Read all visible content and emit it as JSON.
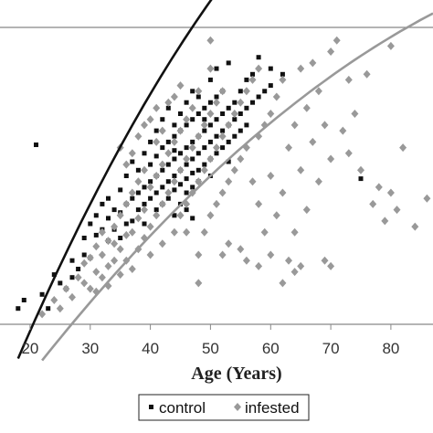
{
  "chart_data": {
    "type": "scatter",
    "xlabel": "Age (Years)",
    "ylabel": "",
    "xlim": [
      15,
      87
    ],
    "ylim": [
      0,
      1
    ],
    "x_ticks": [
      "20",
      "30",
      "40",
      "50",
      "60",
      "70",
      "80"
    ],
    "grid": false,
    "legend_position": "bottom",
    "series": [
      {
        "name": "control",
        "color": "#111111",
        "marker": "square",
        "points": [
          [
            18,
            0.03
          ],
          [
            21,
            0.61
          ],
          [
            23,
            0.03
          ],
          [
            25,
            0.12
          ],
          [
            26,
            0.1
          ],
          [
            27,
            0.14
          ],
          [
            27,
            0.2
          ],
          [
            28,
            0.17
          ],
          [
            29,
            0.22
          ],
          [
            29,
            0.28
          ],
          [
            30,
            0.21
          ],
          [
            30,
            0.33
          ],
          [
            31,
            0.29
          ],
          [
            31,
            0.36
          ],
          [
            32,
            0.31
          ],
          [
            32,
            0.4
          ],
          [
            33,
            0.35
          ],
          [
            33,
            0.42
          ],
          [
            34,
            0.38
          ],
          [
            34,
            0.31
          ],
          [
            35,
            0.37
          ],
          [
            35,
            0.45
          ],
          [
            35,
            0.28
          ],
          [
            36,
            0.4
          ],
          [
            36,
            0.5
          ],
          [
            37,
            0.42
          ],
          [
            37,
            0.34
          ],
          [
            37,
            0.55
          ],
          [
            38,
            0.44
          ],
          [
            38,
            0.38
          ],
          [
            38,
            0.52
          ],
          [
            39,
            0.46
          ],
          [
            39,
            0.4
          ],
          [
            39,
            0.58
          ],
          [
            39,
            0.33
          ],
          [
            40,
            0.48
          ],
          [
            40,
            0.42
          ],
          [
            40,
            0.54
          ],
          [
            40,
            0.62
          ],
          [
            41,
            0.5
          ],
          [
            41,
            0.44
          ],
          [
            41,
            0.57
          ],
          [
            41,
            0.38
          ],
          [
            41,
            0.66
          ],
          [
            42,
            0.52
          ],
          [
            42,
            0.46
          ],
          [
            42,
            0.6
          ],
          [
            42,
            0.4
          ],
          [
            42,
            0.7
          ],
          [
            43,
            0.54
          ],
          [
            43,
            0.48
          ],
          [
            43,
            0.62
          ],
          [
            43,
            0.42
          ],
          [
            43,
            0.74
          ],
          [
            44,
            0.56
          ],
          [
            44,
            0.5
          ],
          [
            44,
            0.64
          ],
          [
            44,
            0.45
          ],
          [
            44,
            0.68
          ],
          [
            44,
            0.36
          ],
          [
            45,
            0.58
          ],
          [
            45,
            0.52
          ],
          [
            45,
            0.66
          ],
          [
            45,
            0.47
          ],
          [
            45,
            0.72
          ],
          [
            45,
            0.4
          ],
          [
            46,
            0.6
          ],
          [
            46,
            0.54
          ],
          [
            46,
            0.68
          ],
          [
            46,
            0.49
          ],
          [
            46,
            0.76
          ],
          [
            46,
            0.44
          ],
          [
            47,
            0.62
          ],
          [
            47,
            0.56
          ],
          [
            47,
            0.7
          ],
          [
            47,
            0.51
          ],
          [
            47,
            0.8
          ],
          [
            47,
            0.46
          ],
          [
            48,
            0.64
          ],
          [
            48,
            0.58
          ],
          [
            48,
            0.72
          ],
          [
            48,
            0.52
          ],
          [
            48,
            0.78
          ],
          [
            48,
            0.48
          ],
          [
            49,
            0.6
          ],
          [
            49,
            0.66
          ],
          [
            49,
            0.74
          ],
          [
            49,
            0.54
          ],
          [
            49,
            0.7
          ],
          [
            50,
            0.62
          ],
          [
            50,
            0.68
          ],
          [
            50,
            0.76
          ],
          [
            50,
            0.56
          ],
          [
            50,
            0.84
          ],
          [
            50,
            0.5
          ],
          [
            51,
            0.64
          ],
          [
            51,
            0.7
          ],
          [
            51,
            0.58
          ],
          [
            51,
            0.78
          ],
          [
            51,
            0.88
          ],
          [
            52,
            0.66
          ],
          [
            52,
            0.72
          ],
          [
            52,
            0.6
          ],
          [
            52,
            0.8
          ],
          [
            53,
            0.68
          ],
          [
            53,
            0.74
          ],
          [
            53,
            0.62
          ],
          [
            53,
            0.9
          ],
          [
            54,
            0.7
          ],
          [
            54,
            0.76
          ],
          [
            54,
            0.64
          ],
          [
            55,
            0.72
          ],
          [
            55,
            0.8
          ],
          [
            55,
            0.66
          ],
          [
            56,
            0.74
          ],
          [
            56,
            0.84
          ],
          [
            56,
            0.68
          ],
          [
            57,
            0.76
          ],
          [
            57,
            0.86
          ],
          [
            58,
            0.78
          ],
          [
            58,
            0.92
          ],
          [
            59,
            0.8
          ],
          [
            60,
            0.82
          ],
          [
            60,
            0.88
          ],
          [
            62,
            0.86
          ],
          [
            75,
            0.49
          ],
          [
            19,
            0.06
          ],
          [
            22,
            0.08
          ],
          [
            24,
            0.15
          ],
          [
            33,
            0.27
          ],
          [
            36,
            0.33
          ],
          [
            44,
            0.59
          ],
          [
            47,
            0.35
          ],
          [
            53,
            0.55
          ],
          [
            46,
            0.38
          ]
        ]
      },
      {
        "name": "infested",
        "color": "#999999",
        "marker": "diamond",
        "points": [
          [
            22,
            0.01
          ],
          [
            24,
            0.06
          ],
          [
            25,
            0.03
          ],
          [
            26,
            0.1
          ],
          [
            27,
            0.07
          ],
          [
            28,
            0.14
          ],
          [
            29,
            0.12
          ],
          [
            29,
            0.19
          ],
          [
            30,
            0.1
          ],
          [
            30,
            0.21
          ],
          [
            31,
            0.16
          ],
          [
            31,
            0.25
          ],
          [
            31,
            0.09
          ],
          [
            32,
            0.14
          ],
          [
            32,
            0.22
          ],
          [
            32,
            0.3
          ],
          [
            33,
            0.18
          ],
          [
            33,
            0.27
          ],
          [
            33,
            0.11
          ],
          [
            34,
            0.2
          ],
          [
            34,
            0.32
          ],
          [
            34,
            0.26
          ],
          [
            35,
            0.15
          ],
          [
            35,
            0.24
          ],
          [
            35,
            0.36
          ],
          [
            35,
            0.6
          ],
          [
            36,
            0.2
          ],
          [
            36,
            0.29
          ],
          [
            36,
            0.4
          ],
          [
            36,
            0.54
          ],
          [
            37,
            0.17
          ],
          [
            37,
            0.3
          ],
          [
            37,
            0.44
          ],
          [
            37,
            0.58
          ],
          [
            38,
            0.24
          ],
          [
            38,
            0.35
          ],
          [
            38,
            0.48
          ],
          [
            38,
            0.64
          ],
          [
            39,
            0.28
          ],
          [
            39,
            0.38
          ],
          [
            39,
            0.52
          ],
          [
            39,
            0.68
          ],
          [
            40,
            0.22
          ],
          [
            40,
            0.32
          ],
          [
            40,
            0.46
          ],
          [
            40,
            0.7
          ],
          [
            41,
            0.36
          ],
          [
            41,
            0.5
          ],
          [
            41,
            0.62
          ],
          [
            41,
            0.74
          ],
          [
            42,
            0.26
          ],
          [
            42,
            0.4
          ],
          [
            42,
            0.54
          ],
          [
            42,
            0.66
          ],
          [
            43,
            0.44
          ],
          [
            43,
            0.58
          ],
          [
            43,
            0.76
          ],
          [
            44,
            0.3
          ],
          [
            44,
            0.48
          ],
          [
            44,
            0.62
          ],
          [
            44,
            0.78
          ],
          [
            45,
            0.36
          ],
          [
            45,
            0.52
          ],
          [
            45,
            0.66
          ],
          [
            45,
            0.82
          ],
          [
            46,
            0.4
          ],
          [
            46,
            0.56
          ],
          [
            46,
            0.7
          ],
          [
            47,
            0.44
          ],
          [
            47,
            0.6
          ],
          [
            47,
            0.74
          ],
          [
            48,
            0.22
          ],
          [
            48,
            0.48
          ],
          [
            48,
            0.64
          ],
          [
            48,
            0.8
          ],
          [
            49,
            0.3
          ],
          [
            49,
            0.52
          ],
          [
            49,
            0.68
          ],
          [
            50,
            0.36
          ],
          [
            50,
            0.56
          ],
          [
            50,
            0.72
          ],
          [
            50,
            0.88
          ],
          [
            50,
            0.98
          ],
          [
            51,
            0.4
          ],
          [
            51,
            0.6
          ],
          [
            51,
            0.76
          ],
          [
            52,
            0.44
          ],
          [
            52,
            0.64
          ],
          [
            52,
            0.8
          ],
          [
            53,
            0.26
          ],
          [
            53,
            0.48
          ],
          [
            53,
            0.68
          ],
          [
            54,
            0.52
          ],
          [
            54,
            0.72
          ],
          [
            55,
            0.56
          ],
          [
            55,
            0.76
          ],
          [
            56,
            0.2
          ],
          [
            56,
            0.6
          ],
          [
            56,
            0.8
          ],
          [
            57,
            0.48
          ],
          [
            57,
            0.84
          ],
          [
            58,
            0.4
          ],
          [
            58,
            0.64
          ],
          [
            58,
            0.88
          ],
          [
            59,
            0.3
          ],
          [
            59,
            0.68
          ],
          [
            60,
            0.22
          ],
          [
            60,
            0.5
          ],
          [
            60,
            0.72
          ],
          [
            61,
            0.36
          ],
          [
            61,
            0.78
          ],
          [
            62,
            0.44
          ],
          [
            62,
            0.84
          ],
          [
            63,
            0.2
          ],
          [
            63,
            0.6
          ],
          [
            64,
            0.3
          ],
          [
            64,
            0.68
          ],
          [
            65,
            0.52
          ],
          [
            65,
            0.88
          ],
          [
            66,
            0.38
          ],
          [
            66,
            0.74
          ],
          [
            67,
            0.62
          ],
          [
            67,
            0.9
          ],
          [
            68,
            0.48
          ],
          [
            68,
            0.8
          ],
          [
            69,
            0.2
          ],
          [
            69,
            0.68
          ],
          [
            70,
            0.94
          ],
          [
            70,
            0.56
          ],
          [
            71,
            0.98
          ],
          [
            72,
            0.66
          ],
          [
            73,
            0.84
          ],
          [
            74,
            0.72
          ],
          [
            75,
            0.52
          ],
          [
            76,
            0.86
          ],
          [
            77,
            0.4
          ],
          [
            78,
            0.46
          ],
          [
            79,
            0.34
          ],
          [
            80,
            0.96
          ],
          [
            80,
            0.44
          ],
          [
            81,
            0.38
          ],
          [
            82,
            0.6
          ],
          [
            84,
            0.32
          ],
          [
            86,
            0.42
          ],
          [
            62,
            0.12
          ],
          [
            64,
            0.16
          ],
          [
            65,
            0.18
          ],
          [
            70,
            0.18
          ],
          [
            73,
            0.58
          ],
          [
            58,
            0.18
          ],
          [
            55,
            0.24
          ],
          [
            52,
            0.22
          ],
          [
            48,
            0.12
          ],
          [
            46,
            0.3
          ]
        ]
      }
    ],
    "trendlines": [
      {
        "series": "control",
        "color": "#111111",
        "x": [
          18,
          75
        ],
        "coeffs": [
          -1.13,
          0.06,
          -0.0003
        ]
      },
      {
        "series": "infested",
        "color": "#999999",
        "x": [
          22,
          87
        ],
        "coeffs": [
          -0.8,
          0.032,
          -0.00012
        ]
      }
    ]
  }
}
